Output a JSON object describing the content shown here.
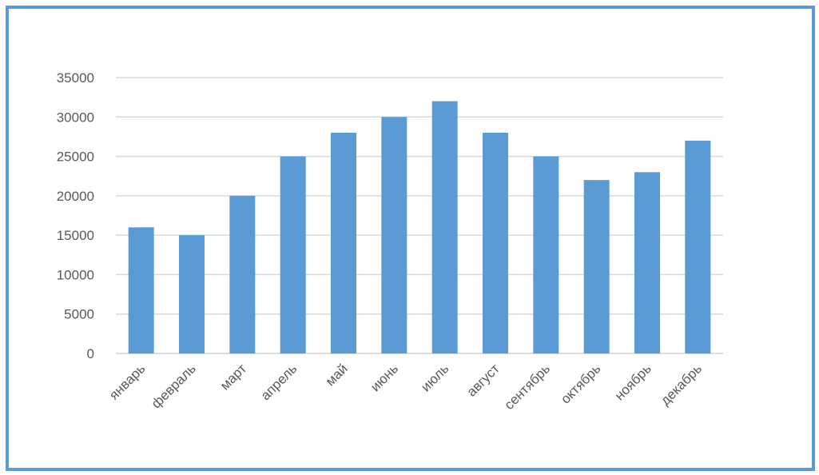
{
  "chart_data": {
    "type": "bar",
    "categories": [
      "январь",
      "февраль",
      "март",
      "апрель",
      "май",
      "июнь",
      "июль",
      "август",
      "сентябрь",
      "октябрь",
      "ноябрь",
      "декабрь"
    ],
    "values": [
      16000,
      15000,
      20000,
      25000,
      28000,
      30000,
      32000,
      28000,
      25000,
      22000,
      23000,
      27000
    ],
    "ylim": [
      0,
      35000
    ],
    "yticks": [
      "0",
      "5000",
      "10000",
      "15000",
      "20000",
      "25000",
      "30000",
      "35000"
    ],
    "grid": true,
    "legend": "none",
    "bar_color": "#5b9bd5",
    "grid_color": "#d9d9d9",
    "frame_color": "#5b9bd5",
    "text_color": "#595959"
  }
}
